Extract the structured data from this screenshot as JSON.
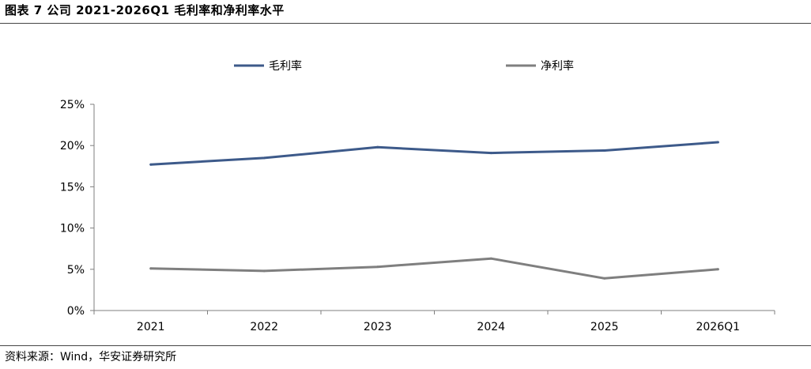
{
  "title": "图表 7 公司 2021-2026Q1 毛利率和净利率水平",
  "source": "资料来源：Wind，华安证券研究所",
  "chart_data": {
    "type": "line",
    "categories": [
      "2021",
      "2022",
      "2023",
      "2024",
      "2025",
      "2026Q1"
    ],
    "series": [
      {
        "name": "毛利率",
        "color": "#3d5a8a",
        "values": [
          17.7,
          18.5,
          19.8,
          19.1,
          19.4,
          20.4
        ]
      },
      {
        "name": "净利率",
        "color": "#7f7f7f",
        "values": [
          5.1,
          4.8,
          5.3,
          6.3,
          3.9,
          5.0
        ]
      }
    ],
    "y_ticks": [
      "0%",
      "5%",
      "10%",
      "15%",
      "20%",
      "25%"
    ],
    "ylim": [
      0,
      25
    ],
    "grid": false,
    "legend_position": "top"
  }
}
